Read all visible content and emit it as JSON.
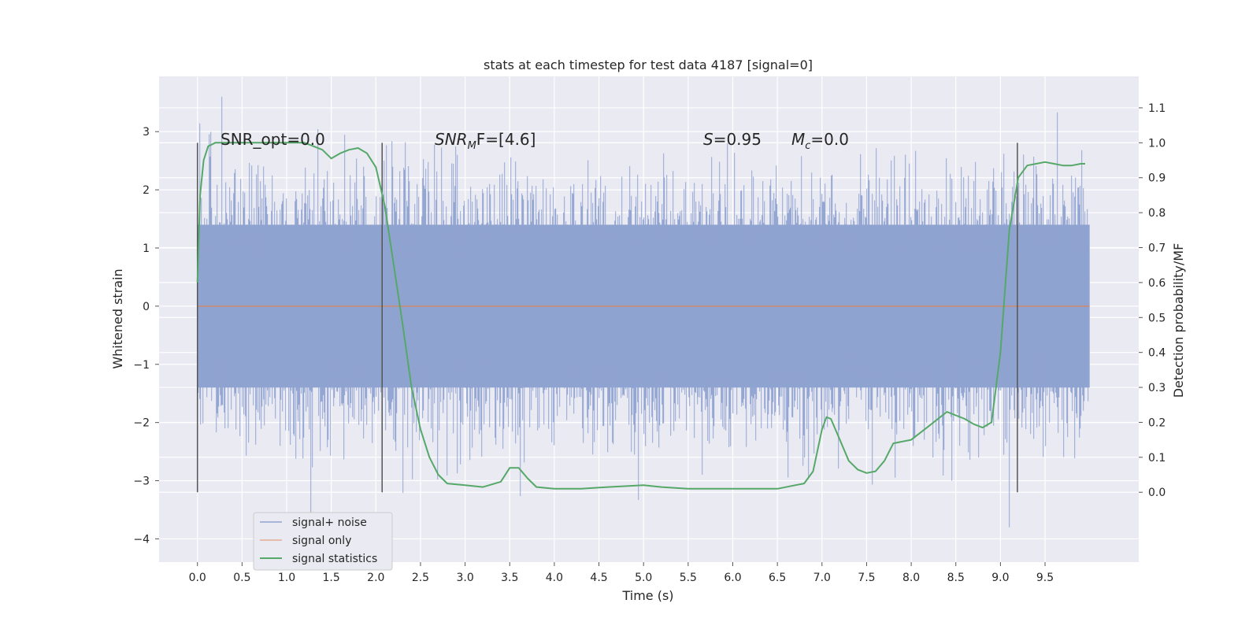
{
  "chart_data": {
    "type": "line",
    "title": "stats at each timestep for test data 4187 [signal=0]",
    "xlabel": "Time (s)",
    "ylabel": "Whitened strain",
    "y2label": "Detection probability/MF",
    "xlim": [
      -0.43,
      10.55
    ],
    "ylim": [
      -4.4,
      3.95
    ],
    "y2lim": [
      -0.2,
      1.19
    ],
    "xticks": [
      "0.0",
      "0.5",
      "1.0",
      "1.5",
      "2.0",
      "2.5",
      "3.0",
      "3.5",
      "4.0",
      "4.5",
      "5.0",
      "5.5",
      "6.0",
      "6.5",
      "7.0",
      "7.5",
      "8.0",
      "8.5",
      "9.0",
      "9.5"
    ],
    "yticks": [
      "3",
      "2",
      "1",
      "0",
      "−1",
      "−2",
      "−3",
      "−4"
    ],
    "y2ticks": [
      "1.1",
      "1.0",
      "0.9",
      "0.8",
      "0.7",
      "0.6",
      "0.5",
      "0.4",
      "0.3",
      "0.2",
      "0.1",
      "0.0"
    ],
    "grid": true,
    "legend_position": "lower-left",
    "annotations": {
      "snr_opt": "SNR_opt=0.0",
      "snr_mf_base": "SNR",
      "snr_mf_sub": "M",
      "snr_mf_rest": "F=[4.6]",
      "s_italic": "S",
      "s_value": "=0.95",
      "mc_italic": "M",
      "mc_sub": "c",
      "mc_value": "=0.0"
    },
    "vertical_markers_x": [
      0.0,
      2.07,
      9.19
    ],
    "series": [
      {
        "name": "signal+ noise",
        "color": "#8fa3d0",
        "x_range": [
          0.0,
          10.0
        ],
        "core_band": [
          -1.4,
          1.4
        ],
        "peak_range": [
          -4.0,
          3.6
        ]
      },
      {
        "name": "signal only",
        "color": "#dd8452",
        "x": [
          0.0,
          10.0
        ],
        "y": [
          0.0,
          0.0
        ]
      },
      {
        "name": "signal statistics",
        "color": "#55a868",
        "axis": "right",
        "x": [
          0.0,
          0.03,
          0.07,
          0.12,
          0.2,
          0.3,
          0.5,
          0.8,
          1.0,
          1.2,
          1.4,
          1.5,
          1.6,
          1.7,
          1.8,
          1.9,
          2.0,
          2.1,
          2.2,
          2.3,
          2.4,
          2.5,
          2.6,
          2.7,
          2.8,
          3.0,
          3.2,
          3.4,
          3.5,
          3.6,
          3.7,
          3.8,
          4.0,
          4.3,
          4.6,
          5.0,
          5.2,
          5.5,
          6.0,
          6.5,
          6.8,
          6.9,
          7.0,
          7.05,
          7.1,
          7.2,
          7.3,
          7.4,
          7.5,
          7.6,
          7.7,
          7.8,
          8.0,
          8.2,
          8.4,
          8.6,
          8.7,
          8.8,
          8.9,
          9.0,
          9.1,
          9.2,
          9.3,
          9.4,
          9.5,
          9.6,
          9.7,
          9.8,
          9.9,
          9.95
        ],
        "y": [
          0.6,
          0.85,
          0.95,
          0.99,
          1.0,
          1.0,
          1.0,
          1.0,
          1.0,
          1.0,
          0.98,
          0.955,
          0.97,
          0.98,
          0.985,
          0.97,
          0.93,
          0.82,
          0.65,
          0.48,
          0.3,
          0.18,
          0.1,
          0.05,
          0.025,
          0.02,
          0.015,
          0.03,
          0.07,
          0.07,
          0.04,
          0.015,
          0.01,
          0.01,
          0.015,
          0.02,
          0.015,
          0.01,
          0.01,
          0.01,
          0.025,
          0.06,
          0.18,
          0.215,
          0.21,
          0.15,
          0.09,
          0.065,
          0.055,
          0.06,
          0.09,
          0.14,
          0.15,
          0.19,
          0.23,
          0.21,
          0.195,
          0.185,
          0.2,
          0.4,
          0.75,
          0.9,
          0.935,
          0.94,
          0.945,
          0.94,
          0.935,
          0.935,
          0.94,
          0.94
        ]
      }
    ]
  }
}
